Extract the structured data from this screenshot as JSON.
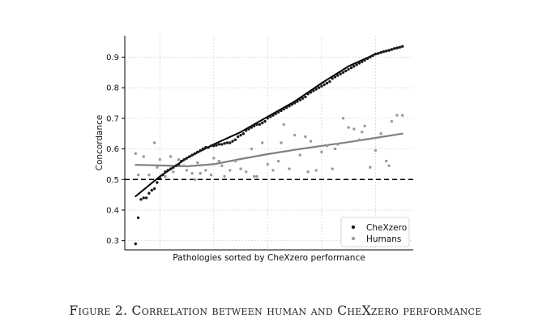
{
  "chart_data": {
    "type": "scatter",
    "xlabel": "Pathologies sorted by CheXzero performance",
    "ylabel": "Concordance",
    "ylim": [
      0.27,
      0.97
    ],
    "yticks": [
      "0.3",
      "0.4",
      "0.5",
      "0.6",
      "0.7",
      "0.8",
      "0.9"
    ],
    "grid": true,
    "legend_position": "bottom-right",
    "reference_line": {
      "y": 0.5,
      "style": "dashed"
    },
    "series": [
      {
        "name": "CheXzero",
        "color": "#1a1a1a",
        "x": [
          1,
          2,
          3,
          4,
          5,
          6,
          7,
          8,
          9,
          10,
          11,
          12,
          13,
          14,
          15,
          16,
          17,
          18,
          19,
          20,
          21,
          22,
          23,
          24,
          25,
          26,
          27,
          28,
          29,
          30,
          31,
          32,
          33,
          34,
          35,
          36,
          37,
          38,
          39,
          40,
          41,
          42,
          43,
          44,
          45,
          46,
          47,
          48,
          49,
          50,
          51,
          52,
          53,
          54,
          55,
          56,
          57,
          58,
          59,
          60,
          61,
          62,
          63,
          64,
          65,
          66,
          67,
          68,
          69,
          70,
          71,
          72,
          73,
          74,
          75,
          76,
          77,
          78,
          79,
          80,
          81,
          82,
          83,
          84,
          85,
          86,
          87,
          88,
          89,
          90,
          91,
          92,
          93,
          94,
          95,
          96,
          97,
          98,
          99,
          100
        ],
        "values": [
          0.29,
          0.375,
          0.435,
          0.44,
          0.44,
          0.455,
          0.465,
          0.47,
          0.49,
          0.505,
          0.515,
          0.525,
          0.53,
          0.535,
          0.54,
          0.545,
          0.55,
          0.56,
          0.565,
          0.57,
          0.575,
          0.58,
          0.585,
          0.59,
          0.595,
          0.6,
          0.605,
          0.605,
          0.61,
          0.61,
          0.612,
          0.615,
          0.615,
          0.618,
          0.62,
          0.62,
          0.625,
          0.63,
          0.64,
          0.645,
          0.65,
          0.66,
          0.665,
          0.67,
          0.675,
          0.68,
          0.68,
          0.685,
          0.69,
          0.7,
          0.705,
          0.71,
          0.715,
          0.72,
          0.725,
          0.73,
          0.735,
          0.74,
          0.745,
          0.75,
          0.755,
          0.76,
          0.765,
          0.77,
          0.78,
          0.785,
          0.79,
          0.795,
          0.8,
          0.805,
          0.81,
          0.815,
          0.82,
          0.83,
          0.835,
          0.84,
          0.845,
          0.85,
          0.855,
          0.86,
          0.865,
          0.87,
          0.875,
          0.88,
          0.885,
          0.89,
          0.895,
          0.9,
          0.905,
          0.91,
          0.912,
          0.915,
          0.918,
          0.92,
          0.922,
          0.925,
          0.928,
          0.93,
          0.932,
          0.935
        ]
      },
      {
        "name": "Humans",
        "color": "#9a9a9a",
        "x": [
          1,
          2,
          4,
          6,
          8,
          9,
          10,
          12,
          14,
          15,
          17,
          19,
          20,
          22,
          24,
          25,
          27,
          29,
          30,
          32,
          34,
          36,
          38,
          40,
          42,
          44,
          46,
          48,
          50,
          52,
          54,
          56,
          58,
          60,
          62,
          64,
          66,
          68,
          70,
          72,
          74,
          76,
          78,
          80,
          82,
          84,
          86,
          88,
          90,
          92,
          94,
          96,
          98,
          100,
          45,
          55,
          65,
          75,
          85,
          95,
          33,
          23
        ],
        "values": [
          0.585,
          0.515,
          0.575,
          0.515,
          0.62,
          0.54,
          0.565,
          0.51,
          0.575,
          0.525,
          0.565,
          0.545,
          0.53,
          0.52,
          0.555,
          0.52,
          0.53,
          0.515,
          0.57,
          0.56,
          0.51,
          0.53,
          0.56,
          0.535,
          0.525,
          0.6,
          0.51,
          0.62,
          0.55,
          0.53,
          0.56,
          0.68,
          0.535,
          0.645,
          0.58,
          0.64,
          0.625,
          0.53,
          0.59,
          0.61,
          0.535,
          0.615,
          0.7,
          0.67,
          0.665,
          0.63,
          0.675,
          0.54,
          0.595,
          0.65,
          0.56,
          0.69,
          0.71,
          0.71,
          0.51,
          0.62,
          0.525,
          0.6,
          0.655,
          0.545,
          0.545,
          0.5
        ]
      }
    ],
    "trend_lines": [
      {
        "series": "CheXzero",
        "color": "#000000",
        "x": [
          1,
          10,
          20,
          30,
          40,
          50,
          60,
          70,
          80,
          90,
          100
        ],
        "values": [
          0.445,
          0.51,
          0.57,
          0.615,
          0.655,
          0.705,
          0.755,
          0.815,
          0.87,
          0.91,
          0.935
        ]
      },
      {
        "series": "Humans",
        "color": "#808080",
        "x": [
          1,
          10,
          20,
          30,
          40,
          50,
          60,
          70,
          80,
          90,
          100
        ],
        "values": [
          0.548,
          0.546,
          0.543,
          0.55,
          0.567,
          0.583,
          0.597,
          0.61,
          0.622,
          0.636,
          0.65
        ]
      }
    ]
  },
  "caption": "Figure 2. Correlation between human and CheXzero performance"
}
